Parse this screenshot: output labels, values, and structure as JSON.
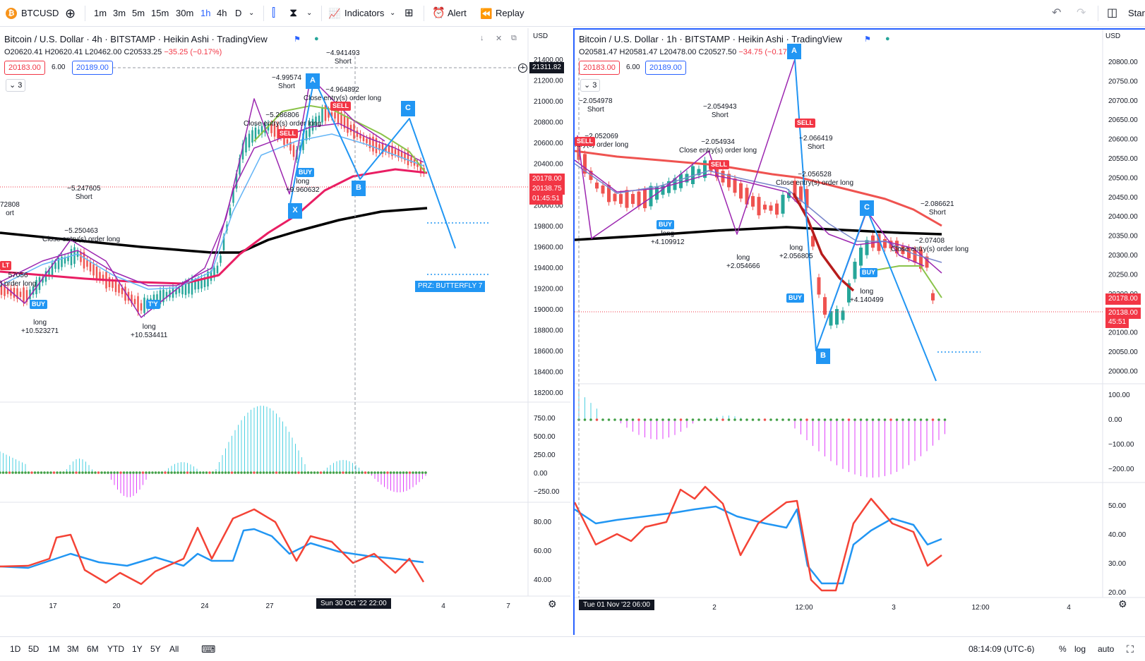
{
  "toolbar": {
    "symbol": "BTCUSD",
    "timeframes": [
      "1m",
      "3m",
      "5m",
      "15m",
      "30m",
      "1h",
      "4h",
      "D"
    ],
    "active_timeframe": "1h",
    "indicators_label": "Indicators",
    "alert_label": "Alert",
    "replay_label": "Replay",
    "start_label": "Star"
  },
  "left": {
    "title": "Bitcoin / U.S. Dollar · 4h · BITSTAMP · Heikin Ashi · TradingView",
    "ohlc": {
      "o": "O20620.41",
      "h": "H20620.41",
      "l": "L20462.00",
      "c": "C20533.25",
      "chg": "−35.25 (−0.17%)"
    },
    "bid": "20183.00",
    "spread": "6.00",
    "ask": "20189.00",
    "collapse": "3",
    "currency": "USD",
    "price_ticks": [
      "21400.00",
      "21200.00",
      "21000.00",
      "20800.00",
      "20600.00",
      "20400.00",
      "20200.00",
      "20000.00",
      "19800.00",
      "19600.00",
      "19400.00",
      "19200.00",
      "19000.00",
      "18800.00",
      "18600.00",
      "18400.00",
      "18200.00"
    ],
    "cursor_price": "21311.82",
    "last_price": "20178.00",
    "last_price_2": "20138.75",
    "countdown": "01:45:51",
    "osc_ticks": [
      "750.00",
      "500.00",
      "250.00",
      "0.00",
      "−250.00"
    ],
    "rsi_ticks": [
      "80.00",
      "60.00",
      "40.00"
    ],
    "time_ticks": [
      "17",
      "20",
      "24",
      "27",
      "4",
      "7"
    ],
    "cursor_time": "Sun 30 Oct '22   22:00",
    "prz_label": "PRZ: BUTTERFLY 7",
    "points": {
      "a": "A",
      "b": "B",
      "c": "C",
      "x": "X"
    },
    "annotations": {
      "a1": "72808",
      "a1b": "ort",
      "a2": "57056",
      "a2b": ") order long",
      "a3": "−5.247605",
      "a3b": "Short",
      "a4": "−5.250463",
      "a4b": "Close entry(s) order long",
      "a5": "long",
      "a5b": "+10.523271",
      "a6": "long",
      "a6b": "+10.534411",
      "a7": "−4.99574",
      "a7b": "Short",
      "a8": "−5.286806",
      "a8b": "Close entry(s) order long",
      "a9": "long",
      "a9b": "+9.960632",
      "a10": "−4.941493",
      "a10b": "Short",
      "a11": "−4.964892",
      "a11b": "Close entry(s) order long"
    },
    "tags": {
      "buy": "BUY",
      "sell": "SELL",
      "tlt": "LT",
      "try": "T'Y"
    }
  },
  "right": {
    "title": "Bitcoin / U.S. Dollar · 1h · BITSTAMP · Heikin Ashi · TradingView",
    "ohlc": {
      "o": "O20581.47",
      "h": "H20581.47",
      "l": "L20478.00",
      "c": "C20527.50",
      "chg": "−34.75 (−0.17%)"
    },
    "bid": "20183.00",
    "spread": "6.00",
    "ask": "20189.00",
    "collapse": "3",
    "currency": "USD",
    "price_ticks": [
      "20800.00",
      "20750.00",
      "20700.00",
      "20650.00",
      "20600.00",
      "20550.00",
      "20500.00",
      "20450.00",
      "20400.00",
      "20350.00",
      "20300.00",
      "20250.00",
      "20200.00",
      "20150.00",
      "20100.00",
      "20050.00",
      "20000.00"
    ],
    "last_price": "20178.00",
    "last_price_2": "20138.00",
    "countdown": "45:51",
    "osc_ticks": [
      "100.00",
      "0.00",
      "−100.00",
      "−200.00"
    ],
    "rsi_ticks": [
      "50.00",
      "40.00",
      "30.00",
      "20.00"
    ],
    "time_ticks": [
      "2",
      "12:00",
      "3",
      "12:00",
      "4"
    ],
    "cursor_time": "Tue 01 Nov '22   06:00",
    "points": {
      "a": "A",
      "b": "B",
      "c": "C"
    },
    "annotations": {
      "b1": "−2.054978",
      "b1b": "Short",
      "b2": "−2.052069",
      "b2b": "ntry(s) order long",
      "b3": "−2.054943",
      "b3b": "Short",
      "b4": "−2.054934",
      "b4b": "Close entry(s) order long",
      "b5": "long",
      "b5b": "+4.109912",
      "b6": "long",
      "b6b": "+2.054666",
      "b7": "long",
      "b7b": "+2.056805",
      "b8": "−2.066419",
      "b8b": "Short",
      "b9": "−2.056528",
      "b9b": "Close entry(s) order long",
      "b10": "−2.086621",
      "b10b": "Short",
      "b11": "−2.07408",
      "b11b": "Close entry(s) order long",
      "b12": "long",
      "b12b": "+4.140499"
    },
    "tags": {
      "buy": "BUY",
      "sell": "SELL"
    }
  },
  "bottom": {
    "ranges": [
      "1D",
      "5D",
      "1M",
      "3M",
      "6M",
      "YTD",
      "1Y",
      "5Y",
      "All"
    ],
    "clock": "08:14:09 (UTC-6)",
    "pct": "%",
    "log": "log",
    "auto": "auto"
  },
  "colors": {
    "up": "#26a69a",
    "down": "#ef5350",
    "blue": "#2196f3",
    "purple": "#9c27b0",
    "ema_black": "#000000",
    "ema_red": "#e91e63",
    "accent": "#2962ff"
  }
}
